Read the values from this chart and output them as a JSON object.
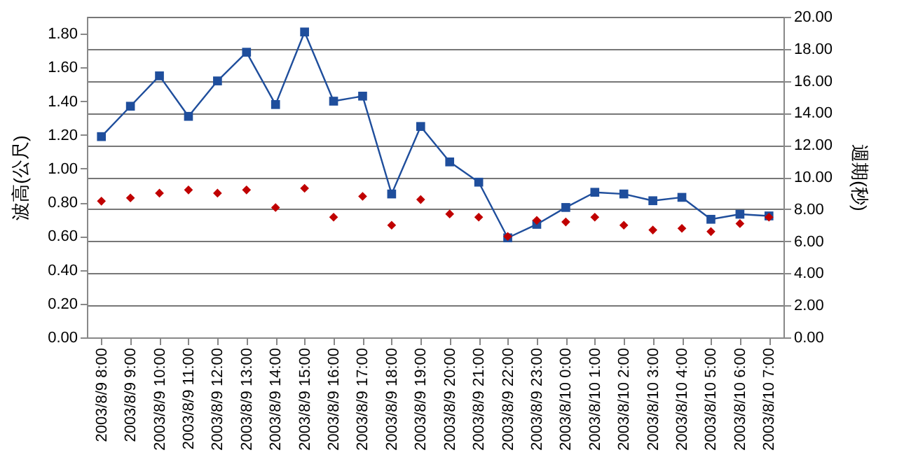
{
  "chart_data": {
    "type": "line",
    "ylabel": "波高(公尺)",
    "y2label": "週期(秒)",
    "categories": [
      "2003/8/9 8:00",
      "2003/8/9 9:00",
      "2003/8/9 10:00",
      "2003/8/9 11:00",
      "2003/8/9 12:00",
      "2003/8/9 13:00",
      "2003/8/9 14:00",
      "2003/8/9 15:00",
      "2003/8/9 16:00",
      "2003/8/9 17:00",
      "2003/8/9 18:00",
      "2003/8/9 19:00",
      "2003/8/9 20:00",
      "2003/8/9 21:00",
      "2003/8/9 22:00",
      "2003/8/9 23:00",
      "2003/8/10 0:00",
      "2003/8/10 1:00",
      "2003/8/10 2:00",
      "2003/8/10 3:00",
      "2003/8/10 4:00",
      "2003/8/10 5:00",
      "2003/8/10 6:00",
      "2003/8/10 7:00"
    ],
    "series": [
      {
        "marker": "square",
        "color": "#1f4e9c",
        "values": [
          1.19,
          1.37,
          1.55,
          1.31,
          1.52,
          1.69,
          1.38,
          1.81,
          1.4,
          1.43,
          0.85,
          1.25,
          1.04,
          0.92,
          0.59,
          0.67,
          0.77,
          0.86,
          0.85,
          0.81,
          0.83,
          0.7,
          0.73,
          0.72
        ]
      },
      {
        "type": "scatter",
        "marker": "diamond",
        "axis": "y2",
        "color": "#c00000",
        "values": [
          8.5,
          8.7,
          9.0,
          9.2,
          9.0,
          9.2,
          8.1,
          9.3,
          7.5,
          8.8,
          7.0,
          8.6,
          7.7,
          7.5,
          6.3,
          7.3,
          7.2,
          7.5,
          7.0,
          6.7,
          6.8,
          6.6,
          7.1,
          7.5
        ]
      }
    ],
    "ylim": [
      0,
      1.9
    ],
    "yticks": [
      {
        "value": 0,
        "label": "0.00"
      },
      {
        "value": 0.2,
        "label": "0.20"
      },
      {
        "value": 0.4,
        "label": "0.40"
      },
      {
        "value": 0.6,
        "label": "0.60"
      },
      {
        "value": 0.8,
        "label": "0.80"
      },
      {
        "value": 1,
        "label": "1.00"
      },
      {
        "value": 1.2,
        "label": "1.20"
      },
      {
        "value": 1.4,
        "label": "1.40"
      },
      {
        "value": 1.6,
        "label": "1.60"
      },
      {
        "value": 1.8,
        "label": "1.80"
      }
    ],
    "y2lim": [
      0,
      20
    ],
    "y2ticks": [
      {
        "value": 0,
        "label": "0.00"
      },
      {
        "value": 2,
        "label": "2.00"
      },
      {
        "value": 4,
        "label": "4.00"
      },
      {
        "value": 6,
        "label": "6.00"
      },
      {
        "value": 8,
        "label": "8.00"
      },
      {
        "value": 10,
        "label": "10.00"
      },
      {
        "value": 12,
        "label": "12.00"
      },
      {
        "value": 14,
        "label": "14.00"
      },
      {
        "value": 16,
        "label": "16.00"
      },
      {
        "value": 18,
        "label": "18.00"
      },
      {
        "value": 20,
        "label": "20.00"
      }
    ],
    "grid": "y2"
  }
}
